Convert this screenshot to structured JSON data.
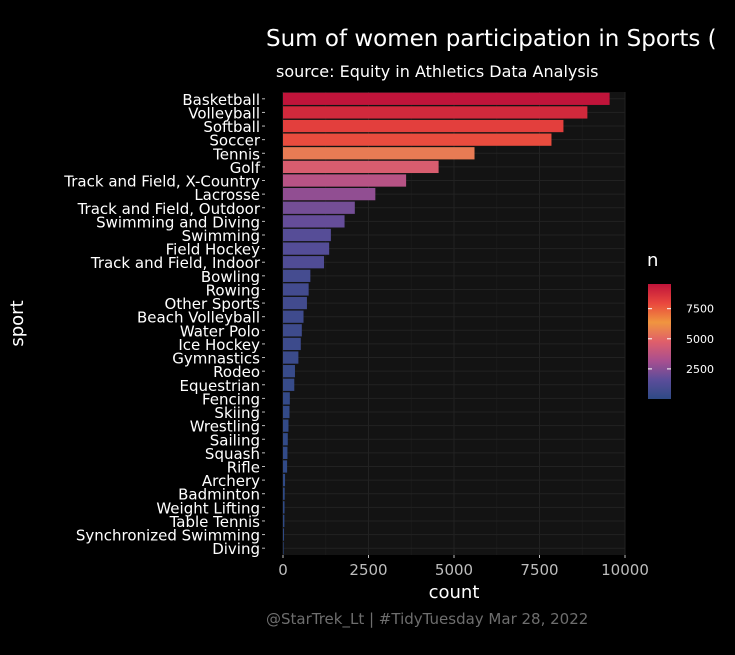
{
  "chart_data": {
    "type": "bar",
    "orientation": "horizontal",
    "title": "Sum of women participation in Sports (",
    "subtitle": "source: Equity in Athletics Data Analysis",
    "caption": "@StarTrek_Lt |  #TidyTuesday  Mar 28, 2022",
    "xlabel": "count",
    "ylabel": "sport",
    "xlim": [
      0,
      10000
    ],
    "xticks": [
      0,
      2500,
      5000,
      7500,
      10000
    ],
    "xtick_labels": [
      "0",
      "2500",
      "5000",
      "7500",
      "10000"
    ],
    "grid": true,
    "categories": [
      "Basketball",
      "Volleyball",
      "Softball",
      "Soccer",
      "Tennis",
      "Golf",
      "Track and Field, X-Country",
      "Lacrosse",
      "Track and Field, Outdoor",
      "Swimming and Diving",
      "Swimming",
      "Field Hockey",
      "Track and Field, Indoor",
      "Bowling",
      "Rowing",
      "Other Sports",
      "Beach Volleyball",
      "Water Polo",
      "Ice Hockey",
      "Gymnastics",
      "Rodeo",
      "Equestrian",
      "Fencing",
      "Skiing",
      "Wrestling",
      "Sailing",
      "Squash",
      "Rifle",
      "Archery",
      "Badminton",
      "Weight Lifting",
      "Table Tennis",
      "Synchronized Swimming",
      "Diving"
    ],
    "values": [
      9550,
      8900,
      8200,
      7850,
      5600,
      4550,
      3600,
      2700,
      2100,
      1800,
      1400,
      1350,
      1200,
      800,
      750,
      700,
      600,
      550,
      520,
      450,
      350,
      330,
      200,
      190,
      160,
      140,
      130,
      120,
      60,
      50,
      45,
      40,
      30,
      15
    ],
    "legend": {
      "title": "n",
      "position": "right",
      "type": "colorbar",
      "ticks": [
        2500,
        5000,
        7500
      ],
      "tick_labels": [
        "2500",
        "5000",
        "7500"
      ],
      "range": [
        0,
        9550
      ],
      "colors": [
        "#2e4a85",
        "#5b4d9a",
        "#a94f8f",
        "#e05f6a",
        "#f0953f",
        "#e9473e",
        "#c0143a"
      ]
    },
    "colors": {
      "background": "#000000",
      "panel": "#131313",
      "grid": "#222222",
      "text": "#ffffff",
      "caption": "#6e6e6e"
    }
  }
}
